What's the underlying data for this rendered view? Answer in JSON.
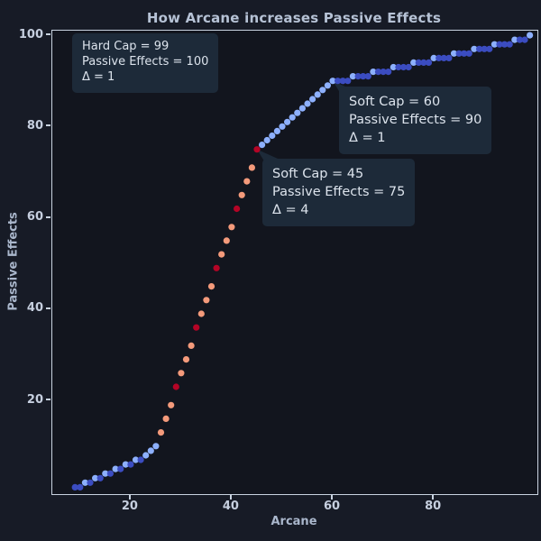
{
  "title": "How Arcane increases Passive Effects",
  "chart_data": {
    "type": "scatter",
    "title": "How Arcane increases Passive Effects",
    "xlabel": "Arcane",
    "ylabel": "Passive Effects",
    "x_ticks": [
      20,
      40,
      60,
      80
    ],
    "y_ticks": [
      20,
      40,
      60,
      80,
      100
    ],
    "x_range": [
      4.5,
      100.5
    ],
    "y_range": [
      -0.5,
      101
    ],
    "grid": false,
    "legend": "none",
    "point_color_by_delta": {
      "0": "#3b4cc0",
      "1": "#8db0fe",
      "3": "#f49a7b",
      "4": "#b40426"
    },
    "points_format": [
      "arcane",
      "passive_effects",
      "delta"
    ],
    "points": [
      [
        9,
        1,
        0
      ],
      [
        10,
        1,
        0
      ],
      [
        11,
        2,
        1
      ],
      [
        12,
        2,
        0
      ],
      [
        13,
        3,
        1
      ],
      [
        14,
        3,
        0
      ],
      [
        15,
        4,
        1
      ],
      [
        16,
        4,
        0
      ],
      [
        17,
        5,
        1
      ],
      [
        18,
        5,
        0
      ],
      [
        19,
        6,
        1
      ],
      [
        20,
        6,
        0
      ],
      [
        21,
        7,
        1
      ],
      [
        22,
        7,
        0
      ],
      [
        23,
        8,
        1
      ],
      [
        24,
        9,
        1
      ],
      [
        25,
        10,
        1
      ],
      [
        26,
        13,
        3
      ],
      [
        27,
        16,
        3
      ],
      [
        28,
        19,
        3
      ],
      [
        29,
        23,
        4
      ],
      [
        30,
        26,
        3
      ],
      [
        31,
        29,
        3
      ],
      [
        32,
        32,
        3
      ],
      [
        33,
        36,
        4
      ],
      [
        34,
        39,
        3
      ],
      [
        35,
        42,
        3
      ],
      [
        36,
        45,
        3
      ],
      [
        37,
        49,
        4
      ],
      [
        38,
        52,
        3
      ],
      [
        39,
        55,
        3
      ],
      [
        40,
        58,
        3
      ],
      [
        41,
        62,
        4
      ],
      [
        42,
        65,
        3
      ],
      [
        43,
        68,
        3
      ],
      [
        44,
        71,
        3
      ],
      [
        45,
        75,
        4
      ],
      [
        46,
        76,
        1
      ],
      [
        47,
        77,
        1
      ],
      [
        48,
        78,
        1
      ],
      [
        49,
        79,
        1
      ],
      [
        50,
        80,
        1
      ],
      [
        51,
        81,
        1
      ],
      [
        52,
        82,
        1
      ],
      [
        53,
        83,
        1
      ],
      [
        54,
        84,
        1
      ],
      [
        55,
        85,
        1
      ],
      [
        56,
        86,
        1
      ],
      [
        57,
        87,
        1
      ],
      [
        58,
        88,
        1
      ],
      [
        59,
        89,
        1
      ],
      [
        60,
        90,
        1
      ],
      [
        61,
        90,
        0
      ],
      [
        62,
        90,
        0
      ],
      [
        63,
        90,
        0
      ],
      [
        64,
        91,
        1
      ],
      [
        65,
        91,
        0
      ],
      [
        66,
        91,
        0
      ],
      [
        67,
        91,
        0
      ],
      [
        68,
        92,
        1
      ],
      [
        69,
        92,
        0
      ],
      [
        70,
        92,
        0
      ],
      [
        71,
        92,
        0
      ],
      [
        72,
        93,
        1
      ],
      [
        73,
        93,
        0
      ],
      [
        74,
        93,
        0
      ],
      [
        75,
        93,
        0
      ],
      [
        76,
        94,
        1
      ],
      [
        77,
        94,
        0
      ],
      [
        78,
        94,
        0
      ],
      [
        79,
        94,
        0
      ],
      [
        80,
        95,
        1
      ],
      [
        81,
        95,
        0
      ],
      [
        82,
        95,
        0
      ],
      [
        83,
        95,
        0
      ],
      [
        84,
        96,
        1
      ],
      [
        85,
        96,
        0
      ],
      [
        86,
        96,
        0
      ],
      [
        87,
        96,
        0
      ],
      [
        88,
        97,
        1
      ],
      [
        89,
        97,
        0
      ],
      [
        90,
        97,
        0
      ],
      [
        91,
        97,
        0
      ],
      [
        92,
        98,
        1
      ],
      [
        93,
        98,
        0
      ],
      [
        94,
        98,
        0
      ],
      [
        95,
        98,
        0
      ],
      [
        96,
        99,
        1
      ],
      [
        97,
        99,
        0
      ],
      [
        98,
        99,
        0
      ],
      [
        99,
        100,
        1
      ]
    ]
  },
  "annotations": [
    {
      "id": "hard-cap",
      "lines": [
        "Hard Cap = 99",
        "Passive Effects = 100",
        "Δ = 1"
      ]
    },
    {
      "id": "soft-cap-60",
      "lines": [
        "Soft Cap = 60",
        "Passive Effects = 90",
        "Δ = 1"
      ],
      "points_to": {
        "arcane": 60,
        "passive_effects": 90
      }
    },
    {
      "id": "soft-cap-45",
      "lines": [
        "Soft Cap = 45",
        "Passive Effects = 75",
        "Δ = 4"
      ],
      "points_to": {
        "arcane": 45,
        "passive_effects": 75
      }
    }
  ],
  "colors": {
    "figure_bg": "#171b26",
    "axes_bg": "#12151e",
    "spine": "#c9d3e0",
    "title": "#b6c2d5",
    "tick_label": "#c6cfdf",
    "axis_label": "#aab7cc",
    "annotation_bg": "#1d2a39",
    "annotation_text": "#dce3ec"
  }
}
